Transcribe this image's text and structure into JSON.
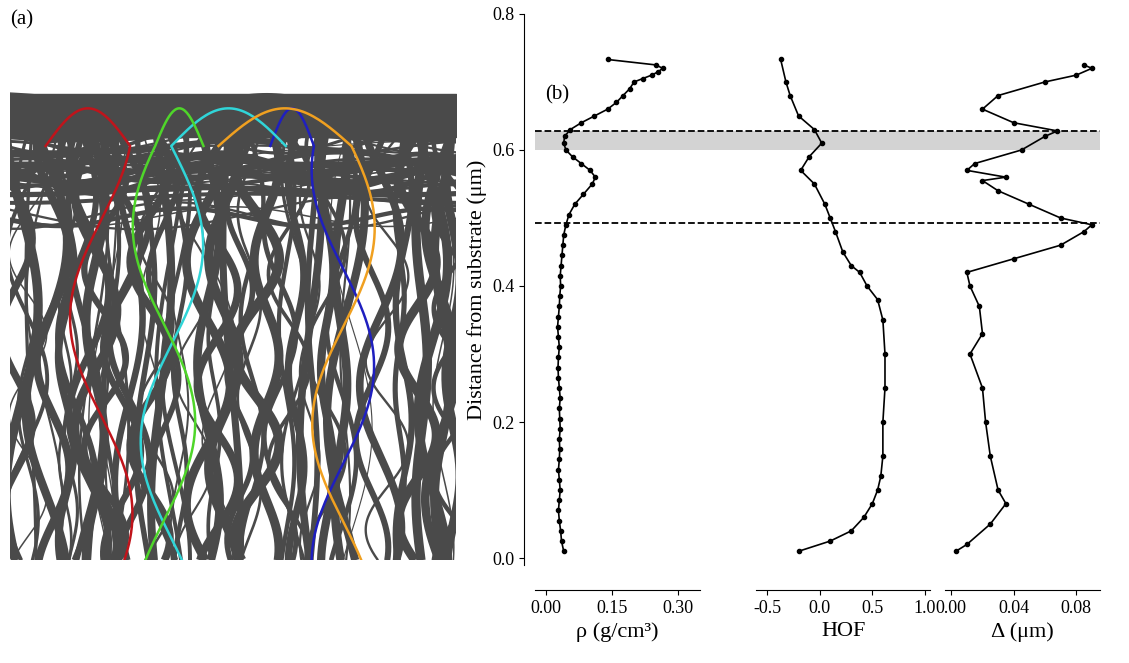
{
  "panel_labels": [
    "(a)",
    "(b)"
  ],
  "y_label": "Distance from substrate (μm)",
  "reference_lines": {
    "y": [
      0.628,
      0.493
    ],
    "line_style": "dashed",
    "color": "#000000"
  },
  "band": {
    "y": [
      0.6,
      0.628
    ],
    "color": "#d3d3d3"
  },
  "chart_data": [
    {
      "type": "line",
      "x_label": "ρ (g/cm³)",
      "color": "#000000",
      "marker": "o",
      "line_style": "solid",
      "xlim": [
        -0.025,
        0.35
      ],
      "xticks": [
        {
          "value": 0,
          "label": "0.00"
        },
        {
          "value": 0.15,
          "label": "0.15"
        },
        {
          "value": 0.3,
          "label": "0.30"
        }
      ],
      "ylim": [
        -0.01,
        0.8
      ],
      "yticks": [
        {
          "value": 0,
          "label": "0.0"
        },
        {
          "value": 0.2,
          "label": "0.2"
        },
        {
          "value": 0.4,
          "label": "0.4"
        },
        {
          "value": 0.6,
          "label": "0.6"
        },
        {
          "value": 0.8,
          "label": "0.8"
        }
      ],
      "y": [
        0.01,
        0.025,
        0.04,
        0.055,
        0.07,
        0.085,
        0.1,
        0.115,
        0.13,
        0.145,
        0.16,
        0.175,
        0.19,
        0.205,
        0.22,
        0.235,
        0.25,
        0.265,
        0.28,
        0.295,
        0.31,
        0.325,
        0.34,
        0.355,
        0.37,
        0.385,
        0.4,
        0.415,
        0.43,
        0.445,
        0.46,
        0.475,
        0.49,
        0.505,
        0.52,
        0.535,
        0.55,
        0.56,
        0.57,
        0.58,
        0.59,
        0.6,
        0.61,
        0.62,
        0.63,
        0.64,
        0.65,
        0.66,
        0.67,
        0.68,
        0.69,
        0.7,
        0.705,
        0.71,
        0.715,
        0.72,
        0.725,
        0.733
      ],
      "x": [
        0.04,
        0.035,
        0.033,
        0.03,
        0.028,
        0.03,
        0.032,
        0.03,
        0.028,
        0.03,
        0.031,
        0.03,
        0.032,
        0.031,
        0.03,
        0.032,
        0.03,
        0.028,
        0.027,
        0.028,
        0.03,
        0.028,
        0.026,
        0.028,
        0.03,
        0.031,
        0.033,
        0.032,
        0.034,
        0.036,
        0.038,
        0.04,
        0.045,
        0.052,
        0.065,
        0.085,
        0.105,
        0.112,
        0.1,
        0.08,
        0.06,
        0.045,
        0.04,
        0.042,
        0.055,
        0.08,
        0.11,
        0.14,
        0.16,
        0.175,
        0.19,
        0.2,
        0.22,
        0.24,
        0.255,
        0.265,
        0.25,
        0.14
      ]
    },
    {
      "type": "line",
      "x_label": "HOF",
      "color": "#000000",
      "marker": "o",
      "line_style": "solid",
      "tick_labels": "x",
      "xlim": [
        -0.6,
        1.05
      ],
      "xticks": [
        -0.5,
        {
          "value": 0,
          "label": "0.0"
        },
        0.5,
        {
          "value": 1,
          "label": "1.0"
        }
      ],
      "ylim": [
        -0.01,
        0.8
      ],
      "y": [
        0.01,
        0.025,
        0.04,
        0.06,
        0.08,
        0.1,
        0.12,
        0.15,
        0.2,
        0.25,
        0.3,
        0.35,
        0.38,
        0.4,
        0.42,
        0.43,
        0.45,
        0.48,
        0.5,
        0.52,
        0.55,
        0.57,
        0.59,
        0.61,
        0.63,
        0.65,
        0.68,
        0.7,
        0.733
      ],
      "x": [
        -0.2,
        0.1,
        0.3,
        0.42,
        0.5,
        0.55,
        0.58,
        0.6,
        0.6,
        0.62,
        0.62,
        0.6,
        0.55,
        0.45,
        0.38,
        0.3,
        0.22,
        0.15,
        0.1,
        0.05,
        -0.05,
        -0.18,
        -0.1,
        0.02,
        -0.05,
        -0.2,
        -0.28,
        -0.32,
        -0.37
      ]
    },
    {
      "type": "line",
      "x_label": "Δ (μm)",
      "color": "#000000",
      "marker": "o",
      "line_style": "solid",
      "tick_labels": "x",
      "xlim": [
        -0.004,
        0.095
      ],
      "xticks": [
        {
          "value": 0,
          "label": "0.00"
        },
        {
          "value": 0.04,
          "label": "0.04"
        },
        {
          "value": 0.08,
          "label": "0.08"
        }
      ],
      "ylim": [
        -0.01,
        0.8
      ],
      "y": [
        0.01,
        0.02,
        0.05,
        0.08,
        0.1,
        0.15,
        0.2,
        0.25,
        0.3,
        0.33,
        0.37,
        0.4,
        0.42,
        0.44,
        0.46,
        0.48,
        0.49,
        0.5,
        0.52,
        0.54,
        0.555,
        0.56,
        0.57,
        0.58,
        0.6,
        0.62,
        0.628,
        0.64,
        0.66,
        0.68,
        0.7,
        0.71,
        0.72,
        0.725
      ],
      "x": [
        0.003,
        0.01,
        0.025,
        0.035,
        0.03,
        0.025,
        0.022,
        0.02,
        0.012,
        0.02,
        0.018,
        0.012,
        0.01,
        0.04,
        0.07,
        0.085,
        0.09,
        0.07,
        0.05,
        0.03,
        0.02,
        0.035,
        0.01,
        0.015,
        0.045,
        0.06,
        0.068,
        0.04,
        0.02,
        0.03,
        0.06,
        0.08,
        0.09,
        0.085
      ]
    }
  ]
}
